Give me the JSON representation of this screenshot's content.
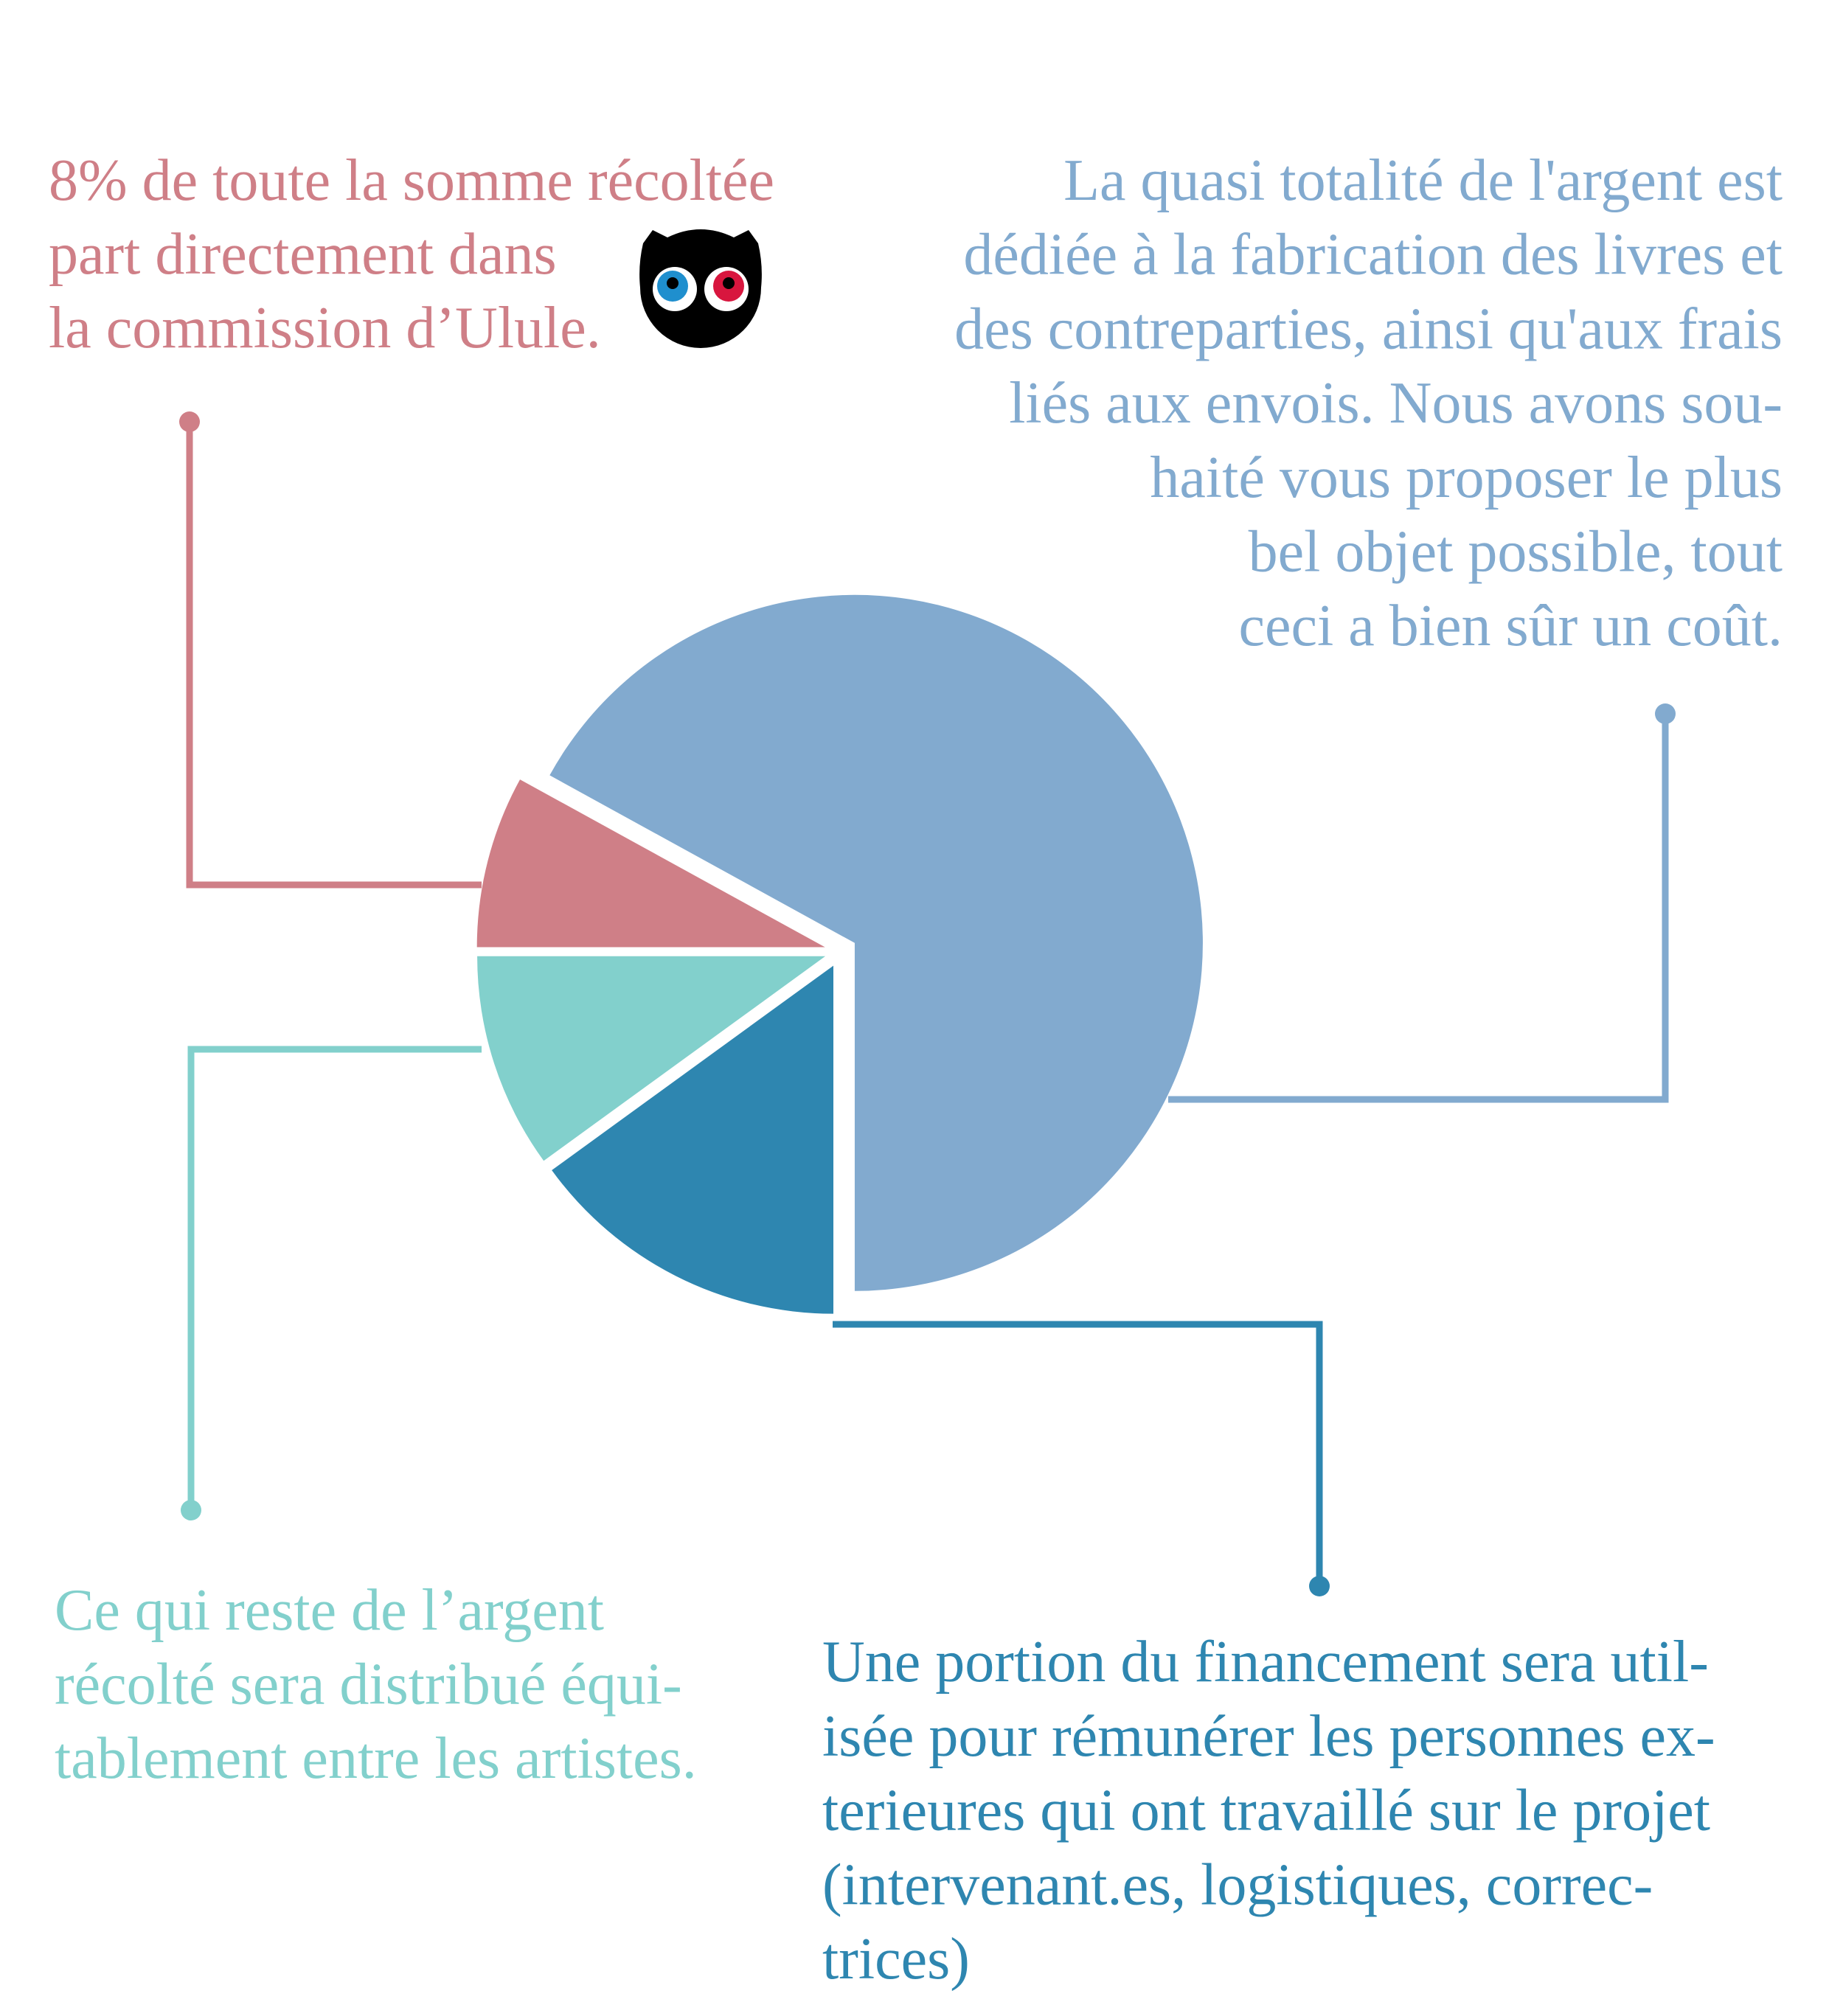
{
  "chart_data": {
    "type": "pie",
    "values": [
      67,
      8,
      10,
      15
    ],
    "colors": [
      "#82aacf",
      "#cf7f87",
      "#82d0cc",
      "#2e86b0"
    ],
    "annotations": [
      {
        "color": "#cf7f87",
        "align": "left",
        "lines": [
          "8% de toute la somme récoltée",
          "part directement dans",
          "la commission d’Ulule."
        ]
      },
      {
        "color": "#82aacf",
        "align": "right",
        "lines": [
          "La quasi totalité de l'argent est",
          "dédiée à la fabrication des livres et",
          "des contreparties, ainsi qu'aux frais",
          "liés aux envois. Nous avons sou-",
          "haité vous proposer le plus",
          "bel objet possible, tout",
          "ceci a bien sûr un coût."
        ]
      },
      {
        "color": "#82d0cc",
        "align": "left",
        "lines": [
          "Ce qui reste de l’argent",
          "récolté sera distribué équi-",
          "tablement entre les artistes."
        ]
      },
      {
        "color": "#2e86b0",
        "align": "left",
        "lines": [
          "Une portion du financement sera util-",
          "isée pour rémunérer les personnes ex-",
          "terieures qui ont travaillé sur le projet",
          "(intervenant.es, logistiques, correc-",
          "trices)"
        ]
      }
    ]
  }
}
